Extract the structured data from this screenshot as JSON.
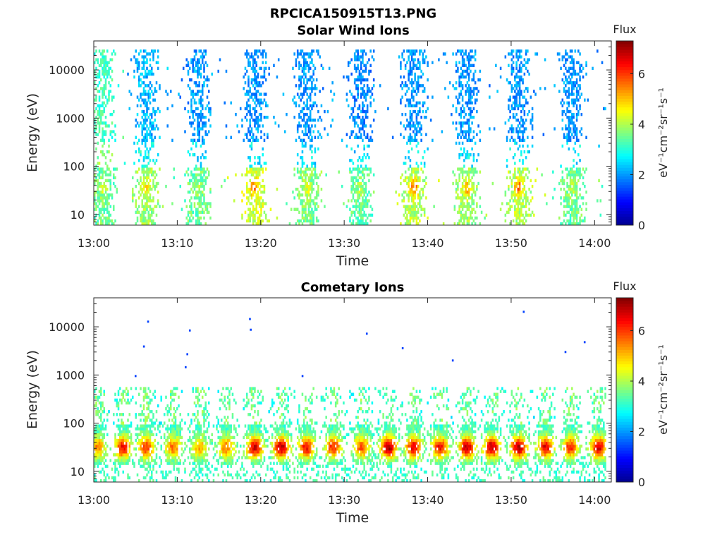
{
  "figure": {
    "title": "RPCICA150915T13.PNG"
  },
  "colormap": [
    "#00008f",
    "#0000ff",
    "#0080ff",
    "#00ffff",
    "#80ff80",
    "#ffff00",
    "#ff8000",
    "#ff0000",
    "#800000"
  ],
  "chart_data": [
    {
      "type": "heatmap",
      "title": "Solar Wind Ions",
      "xlabel": "Time",
      "ylabel": "Energy (eV)",
      "x_ticks": [
        "13:00",
        "13:10",
        "13:20",
        "13:30",
        "13:40",
        "13:50",
        "14:00"
      ],
      "y_ticks": [
        "10",
        "100",
        "1000",
        "10000"
      ],
      "y_scale": "log",
      "xlim_minutes": [
        0,
        62
      ],
      "ylim": [
        6,
        40000
      ],
      "colorbar": {
        "title": "Flux",
        "label": "eV⁻¹cm⁻²sr⁻¹s⁻¹",
        "ticks": [
          "0",
          "2",
          "4",
          "6"
        ],
        "range": [
          0,
          7.3
        ]
      },
      "bursts": [
        {
          "t": 1.0,
          "hi_flux": 3.2,
          "lo_flux": 3.5,
          "peak": 4.2
        },
        {
          "t": 6.2,
          "hi_flux": 2.2,
          "lo_flux": 3.8,
          "peak": 4.8
        },
        {
          "t": 12.5,
          "hi_flux": 2.0,
          "lo_flux": 3.5,
          "peak": 4.0
        },
        {
          "t": 19.2,
          "hi_flux": 2.0,
          "lo_flux": 4.2,
          "peak": 5.5
        },
        {
          "t": 25.5,
          "hi_flux": 2.0,
          "lo_flux": 3.6,
          "peak": 4.3
        },
        {
          "t": 31.8,
          "hi_flux": 1.9,
          "lo_flux": 3.4,
          "peak": 4.0
        },
        {
          "t": 38.3,
          "hi_flux": 2.0,
          "lo_flux": 4.0,
          "peak": 5.8
        },
        {
          "t": 44.6,
          "hi_flux": 2.0,
          "lo_flux": 3.8,
          "peak": 5.2
        },
        {
          "t": 50.8,
          "hi_flux": 2.0,
          "lo_flux": 4.0,
          "peak": 5.8
        },
        {
          "t": 57.3,
          "hi_flux": 2.0,
          "lo_flux": 3.5,
          "peak": 4.1
        }
      ]
    },
    {
      "type": "heatmap",
      "title": "Cometary Ions",
      "xlabel": "Time",
      "ylabel": "Energy (eV)",
      "x_ticks": [
        "13:00",
        "13:10",
        "13:20",
        "13:30",
        "13:40",
        "13:50",
        "14:00"
      ],
      "y_ticks": [
        "10",
        "100",
        "1000",
        "10000"
      ],
      "y_scale": "log",
      "xlim_minutes": [
        0,
        62
      ],
      "ylim": [
        6,
        40000
      ],
      "colorbar": {
        "title": "Flux",
        "label": "eV⁻¹cm⁻²sr⁻¹s⁻¹",
        "ticks": [
          "0",
          "2",
          "4",
          "6"
        ],
        "range": [
          0,
          7.3
        ]
      },
      "bursts": [
        {
          "t": 0.4,
          "peak": 5.5
        },
        {
          "t": 3.4,
          "peak": 6.5
        },
        {
          "t": 6.2,
          "peak": 6.0
        },
        {
          "t": 9.4,
          "peak": 5.6
        },
        {
          "t": 12.6,
          "peak": 5.2
        },
        {
          "t": 15.8,
          "peak": 5.6
        },
        {
          "t": 19.2,
          "peak": 6.8
        },
        {
          "t": 22.4,
          "peak": 7.0
        },
        {
          "t": 25.4,
          "peak": 6.4
        },
        {
          "t": 28.6,
          "peak": 6.2
        },
        {
          "t": 32.0,
          "peak": 5.8
        },
        {
          "t": 35.2,
          "peak": 7.1
        },
        {
          "t": 38.2,
          "peak": 6.6
        },
        {
          "t": 41.4,
          "peak": 6.4
        },
        {
          "t": 44.6,
          "peak": 6.9
        },
        {
          "t": 47.6,
          "peak": 7.0
        },
        {
          "t": 50.8,
          "peak": 7.0
        },
        {
          "t": 54.0,
          "peak": 6.6
        },
        {
          "t": 57.0,
          "peak": 6.2
        },
        {
          "t": 60.4,
          "peak": 6.8
        }
      ],
      "isolated_points": [
        {
          "t": 6.5,
          "energy": 12800
        },
        {
          "t": 6.0,
          "energy": 3900
        },
        {
          "t": 11.5,
          "energy": 8400
        },
        {
          "t": 11.2,
          "energy": 2700
        },
        {
          "t": 11.0,
          "energy": 1450
        },
        {
          "t": 18.8,
          "energy": 8700
        },
        {
          "t": 18.7,
          "energy": 14500
        },
        {
          "t": 32.7,
          "energy": 7200
        },
        {
          "t": 37.0,
          "energy": 3600
        },
        {
          "t": 43.0,
          "energy": 2000
        },
        {
          "t": 51.5,
          "energy": 20500
        },
        {
          "t": 56.5,
          "energy": 3000
        },
        {
          "t": 58.8,
          "energy": 4800
        },
        {
          "t": 5.0,
          "energy": 950
        },
        {
          "t": 25.0,
          "energy": 950
        }
      ]
    }
  ]
}
